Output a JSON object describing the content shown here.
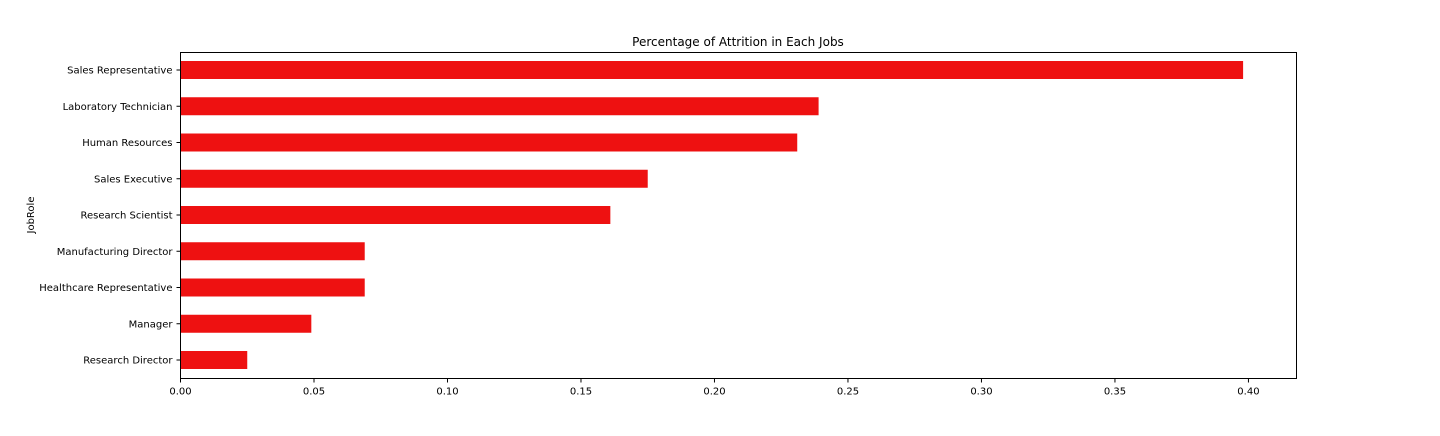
{
  "chart_data": {
    "type": "bar",
    "orientation": "horizontal",
    "title": "Percentage of Attrition in Each Jobs",
    "xlabel": "",
    "ylabel": "JobRole",
    "categories": [
      "Sales Representative",
      "Laboratory Technician",
      "Human Resources",
      "Sales Executive",
      "Research Scientist",
      "Manufacturing Director",
      "Healthcare Representative",
      "Manager",
      "Research Director"
    ],
    "values": [
      0.398,
      0.239,
      0.231,
      0.175,
      0.161,
      0.069,
      0.069,
      0.049,
      0.025
    ],
    "xlim": [
      0,
      0.418
    ],
    "xticks": [
      0.0,
      0.05,
      0.1,
      0.15,
      0.2,
      0.25,
      0.3,
      0.35,
      0.4
    ],
    "xtick_labels": [
      "0.00",
      "0.05",
      "0.10",
      "0.15",
      "0.20",
      "0.25",
      "0.30",
      "0.35",
      "0.40"
    ],
    "bar_color": "#ee1111",
    "grid": false,
    "legend": "none"
  }
}
